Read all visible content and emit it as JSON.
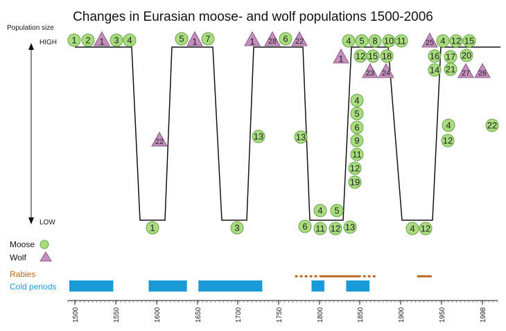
{
  "chart_data": {
    "type": "line",
    "title": "Changes in Eurasian moose- and wolf populations 1500-2006",
    "ylabel": "Population size",
    "y_ticks": [
      "HIGH",
      "LOW"
    ],
    "x_ticks": [
      "1500",
      "1550",
      "1600",
      "1650",
      "1700",
      "1750",
      "1800",
      "1850",
      "1900",
      "1950",
      "1998"
    ],
    "xlim": [
      1500,
      2006
    ],
    "population_line": {
      "name": "Moose",
      "points": [
        [
          1500,
          "HIGH"
        ],
        [
          1570,
          "HIGH"
        ],
        [
          1580,
          "LOW"
        ],
        [
          1610,
          "LOW"
        ],
        [
          1620,
          "HIGH"
        ],
        [
          1680,
          "HIGH"
        ],
        [
          1690,
          "LOW"
        ],
        [
          1720,
          "LOW"
        ],
        [
          1730,
          "HIGH"
        ],
        [
          1790,
          "HIGH"
        ],
        [
          1795,
          "LOW"
        ],
        [
          1830,
          "LOW"
        ],
        [
          1840,
          "HIGH"
        ],
        [
          1885,
          "HIGH"
        ],
        [
          1895,
          "LOW"
        ],
        [
          1935,
          "LOW"
        ],
        [
          1945,
          "HIGH"
        ],
        [
          2000,
          "HIGH"
        ]
      ]
    },
    "markers": [
      {
        "kind": "moose",
        "label": "1",
        "x": 1500,
        "level": "HIGH"
      },
      {
        "kind": "moose",
        "label": "2",
        "x": 1517,
        "level": "HIGH"
      },
      {
        "kind": "wolf",
        "label": "1",
        "x": 1540,
        "level": "HIGH"
      },
      {
        "kind": "moose",
        "label": "3",
        "x": 1550,
        "level": "HIGH"
      },
      {
        "kind": "moose",
        "label": "4",
        "x": 1569,
        "level": "HIGH"
      },
      {
        "kind": "wolf",
        "label": "22",
        "x": 1607,
        "level": "mid-high"
      },
      {
        "kind": "moose",
        "label": "1",
        "x": 1602,
        "level": "LOW"
      },
      {
        "kind": "moose",
        "label": "5",
        "x": 1645,
        "level": "HIGH"
      },
      {
        "kind": "wolf",
        "label": "1",
        "x": 1664,
        "level": "HIGH"
      },
      {
        "kind": "moose",
        "label": "7",
        "x": 1683,
        "level": "HIGH"
      },
      {
        "kind": "moose",
        "label": "13",
        "x": 1739,
        "level": "mid-high"
      },
      {
        "kind": "moose",
        "label": "3",
        "x": 1705,
        "level": "LOW"
      },
      {
        "kind": "wolf",
        "label": "1",
        "x": 1743,
        "level": "HIGH"
      },
      {
        "kind": "wolf",
        "label": "28",
        "x": 1764,
        "level": "HIGH"
      },
      {
        "kind": "moose",
        "label": "6",
        "x": 1782,
        "level": "HIGH"
      },
      {
        "kind": "wolf",
        "label": "22",
        "x": 1805,
        "level": "HIGH"
      },
      {
        "kind": "moose",
        "label": "13",
        "x": 1805,
        "level": "mid-high"
      },
      {
        "kind": "moose",
        "label": "6",
        "x": 1814,
        "level": "LOW"
      },
      {
        "kind": "moose",
        "label": "4",
        "x": 1834,
        "level": "LOW"
      },
      {
        "kind": "moose",
        "label": "11",
        "x": 1834,
        "level": "LOW"
      },
      {
        "kind": "moose",
        "label": "5",
        "x": 1858,
        "level": "LOW"
      },
      {
        "kind": "moose",
        "label": "12",
        "x": 1856,
        "level": "LOW"
      },
      {
        "kind": "moose",
        "label": "13",
        "x": 1880,
        "level": "LOW"
      },
      {
        "kind": "moose",
        "label": "4",
        "x": 1875,
        "level": "HIGH"
      },
      {
        "kind": "wolf",
        "label": "1",
        "x": 1870,
        "level": "HIGH"
      },
      {
        "kind": "moose",
        "label": "5",
        "x": 1895,
        "level": "HIGH"
      },
      {
        "kind": "moose",
        "label": "12",
        "x": 1895,
        "level": "HIGH"
      },
      {
        "kind": "moose",
        "label": "8",
        "x": 1917,
        "level": "HIGH"
      },
      {
        "kind": "moose",
        "label": "15",
        "x": 1913,
        "level": "HIGH"
      },
      {
        "kind": "moose",
        "label": "10",
        "x": 1936,
        "level": "HIGH"
      },
      {
        "kind": "moose",
        "label": "18",
        "x": 1932,
        "level": "HIGH"
      },
      {
        "kind": "moose",
        "label": "11",
        "x": 1955,
        "level": "HIGH"
      },
      {
        "kind": "wolf",
        "label": "23",
        "x": 1910,
        "level": "HIGH"
      },
      {
        "kind": "wolf",
        "label": "24",
        "x": 1932,
        "level": "HIGH"
      },
      {
        "kind": "moose",
        "label": "4",
        "x": 1890,
        "level": "mid"
      },
      {
        "kind": "moose",
        "label": "5",
        "x": 1890,
        "level": "mid"
      },
      {
        "kind": "moose",
        "label": "6",
        "x": 1890,
        "level": "mid"
      },
      {
        "kind": "moose",
        "label": "9",
        "x": 1890,
        "level": "mid"
      },
      {
        "kind": "moose",
        "label": "11",
        "x": 1890,
        "level": "mid"
      },
      {
        "kind": "moose",
        "label": "12",
        "x": 1890,
        "level": "mid"
      },
      {
        "kind": "moose",
        "label": "19",
        "x": 1890,
        "level": "mid"
      },
      {
        "kind": "moose",
        "label": "4",
        "x": 1968,
        "level": "LOW"
      },
      {
        "kind": "moose",
        "label": "12",
        "x": 1987,
        "level": "LOW"
      },
      {
        "kind": "wolf",
        "label": "25",
        "x": 2002,
        "level": "HIGH"
      },
      {
        "kind": "moose",
        "label": "4",
        "x": 2022,
        "level": "HIGH"
      },
      {
        "kind": "moose",
        "label": "12",
        "x": 2042,
        "level": "HIGH"
      },
      {
        "kind": "moose",
        "label": "15",
        "x": 2060,
        "level": "HIGH"
      },
      {
        "kind": "moose",
        "label": "16",
        "x": 2011,
        "level": "HIGH"
      },
      {
        "kind": "moose",
        "label": "17",
        "x": 2032,
        "level": "HIGH"
      },
      {
        "kind": "moose",
        "label": "20",
        "x": 2055,
        "level": "HIGH"
      },
      {
        "kind": "moose",
        "label": "14",
        "x": 2011,
        "level": "HIGH"
      },
      {
        "kind": "moose",
        "label": "21",
        "x": 2032,
        "level": "HIGH"
      },
      {
        "kind": "wolf",
        "label": "27",
        "x": 2055,
        "level": "HIGH"
      },
      {
        "kind": "wolf",
        "label": "26",
        "x": 2085,
        "level": "HIGH"
      },
      {
        "kind": "moose",
        "label": "4",
        "x": 2032,
        "level": "mid-high"
      },
      {
        "kind": "moose",
        "label": "12",
        "x": 2030,
        "level": "mid-high"
      },
      {
        "kind": "moose",
        "label": "22",
        "x": 2095,
        "level": "mid-high"
      }
    ],
    "rabies": {
      "label": "Rabies",
      "color": "#b8671f",
      "solid": [
        [
          1800,
          1848
        ],
        [
          1920,
          1938
        ]
      ],
      "dotted": [
        [
          1770,
          1800
        ],
        [
          1848,
          1870
        ]
      ]
    },
    "cold_periods": {
      "label": "Cold periods",
      "color": "#1a9ad6",
      "bars": [
        [
          1500,
          1547
        ],
        [
          1597,
          1637
        ],
        [
          1658,
          1730
        ],
        [
          1797,
          1806
        ],
        [
          1840,
          1862
        ]
      ]
    },
    "legend": {
      "moose": "Moose",
      "wolf": "Wolf",
      "moose_color": "#a8dc7d",
      "wolf_color": "#c58fbd"
    }
  }
}
